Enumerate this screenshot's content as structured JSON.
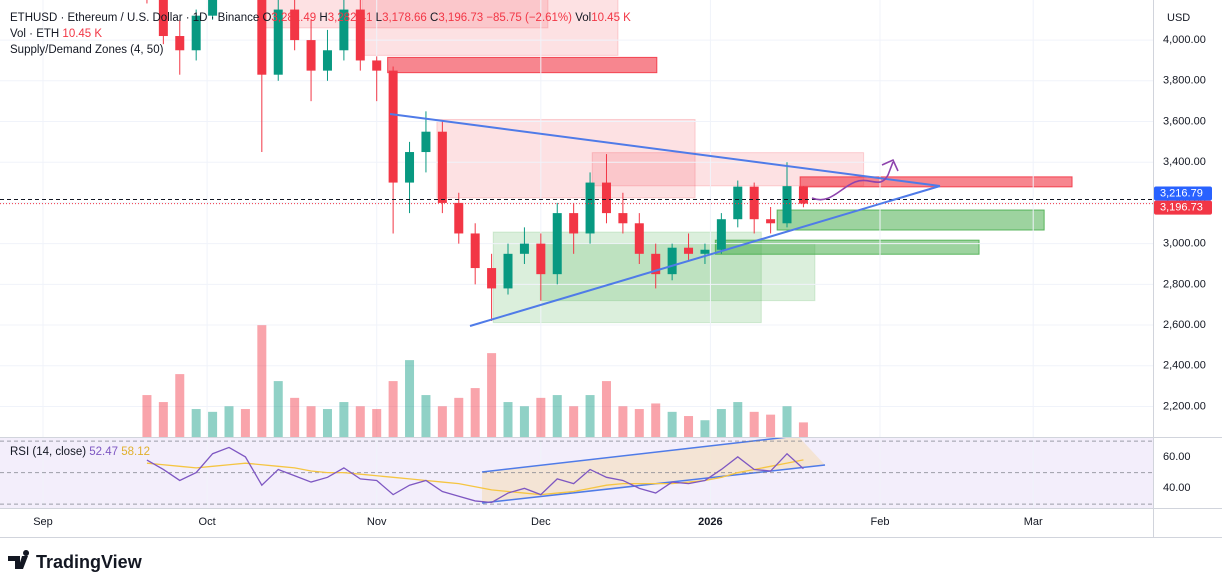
{
  "chart_data": {
    "type": "candlestick",
    "header": {
      "symbol": "ETHUSD · Ethereum / U.S. Dollar · 1D · Binance",
      "o": "O",
      "open": "3,281.49",
      "h": "H",
      "high": "3,282.41",
      "l": "L",
      "low": "3,178.66",
      "c": "C",
      "close": "3,196.73",
      "change": "−85.75 (−2.61%)",
      "vol": "Vol",
      "volume": "10.45 K"
    },
    "volume_legend": {
      "name": "Vol · ETH",
      "value": "10.45 K"
    },
    "indicator_legend": "Supply/Demand Zones (4, 50)",
    "currency": "USD",
    "x": [
      19,
      22,
      25,
      28,
      31,
      34,
      37,
      40,
      43,
      46,
      49,
      52,
      55,
      58,
      61,
      64,
      67,
      70,
      73,
      76,
      79,
      82,
      85,
      88,
      91,
      94,
      97,
      100,
      103,
      106,
      109,
      112,
      115,
      118,
      121,
      124,
      127,
      130,
      133,
      136,
      139
    ],
    "open": [
      4450,
      4200,
      4020,
      3950,
      4120,
      4350,
      4500,
      4450,
      3830,
      4150,
      4000,
      3850,
      3950,
      4150,
      3900,
      3850,
      3300,
      3450,
      3550,
      3200,
      3050,
      2880,
      2780,
      2950,
      3000,
      2850,
      3150,
      3050,
      3300,
      3150,
      3100,
      2950,
      2850,
      2980,
      2950,
      2970,
      3120,
      3280,
      3120,
      3100,
      3281.49
    ],
    "high": [
      4500,
      4260,
      4100,
      4150,
      4400,
      4550,
      4700,
      4480,
      4250,
      4300,
      4100,
      4050,
      4200,
      4250,
      3920,
      3870,
      3500,
      3650,
      3600,
      3250,
      3100,
      2950,
      3000,
      3080,
      3050,
      3200,
      3200,
      3350,
      3440,
      3250,
      3150,
      3000,
      3000,
      3050,
      3000,
      3150,
      3310,
      3300,
      3180,
      3400,
      3282.41
    ],
    "low": [
      4180,
      3980,
      3830,
      3900,
      4100,
      4300,
      4400,
      3450,
      3800,
      3950,
      3700,
      3800,
      3900,
      3850,
      3700,
      3050,
      3150,
      3350,
      3150,
      3000,
      2800,
      2620,
      2750,
      2900,
      2720,
      2800,
      2950,
      3000,
      3100,
      3050,
      2900,
      2780,
      2820,
      2920,
      2900,
      2950,
      3080,
      3050,
      3050,
      3080,
      3178.66
    ],
    "close": [
      4200,
      4020,
      3950,
      4120,
      4350,
      4500,
      4450,
      3830,
      4150,
      4000,
      3850,
      3950,
      4150,
      3900,
      3850,
      3300,
      3450,
      3550,
      3200,
      3050,
      2880,
      2780,
      2950,
      3000,
      2850,
      3150,
      3050,
      3300,
      3150,
      3100,
      2950,
      2850,
      2980,
      2950,
      2970,
      3120,
      3280,
      3120,
      3100,
      3282.48,
      3196.73
    ],
    "volume": [
      30,
      25,
      45,
      20,
      18,
      22,
      20,
      80,
      40,
      28,
      22,
      20,
      25,
      22,
      20,
      40,
      55,
      30,
      22,
      28,
      35,
      60,
      25,
      22,
      28,
      30,
      22,
      30,
      40,
      22,
      20,
      24,
      18,
      15,
      12,
      20,
      25,
      18,
      16,
      22,
      10.45
    ],
    "up_color": "#089981",
    "down_color": "#f23645",
    "xlim": [
      -7.86,
      202.9
    ],
    "xticks": [
      {
        "value": 0,
        "label": "Sep"
      },
      {
        "value": 30,
        "label": "Oct"
      },
      {
        "value": 61,
        "label": "Nov"
      },
      {
        "value": 91,
        "label": "Dec"
      },
      {
        "value": 122,
        "label": "2026",
        "bold": true
      },
      {
        "value": 153,
        "label": "Feb"
      },
      {
        "value": 181,
        "label": "Mar"
      }
    ],
    "ylim": [
      2050,
      4197
    ],
    "yticks": [
      {
        "value": 4000,
        "label": "4,000.00"
      },
      {
        "value": 3800,
        "label": "3,800.00"
      },
      {
        "value": 3600,
        "label": "3,600.00"
      },
      {
        "value": 3400,
        "label": "3,400.00"
      },
      {
        "value": 3200,
        "label": "3,200.00"
      },
      {
        "value": 3000,
        "label": "3,000.00"
      },
      {
        "value": 2800,
        "label": "2,800.00"
      },
      {
        "value": 2600,
        "label": "2,600.00"
      },
      {
        "value": 2400,
        "label": "2,400.00"
      },
      {
        "value": 2200,
        "label": "2,200.00"
      }
    ],
    "grid": true,
    "vlim": [
      0,
      93
    ],
    "price_lines": [
      {
        "value": 3216.79,
        "label": "3,216.79",
        "color": "#2962ff",
        "style": "dashed"
      },
      {
        "value": 3196.73,
        "label": "3,196.73",
        "color": "#f23645",
        "style": "dotted"
      }
    ],
    "zones": [
      {
        "x": [
          40,
          92.3
        ],
        "y": [
          4060,
          4200
        ],
        "color": "#f23645",
        "opacity": 0.15
      },
      {
        "x": [
          58.3,
          105.1
        ],
        "y": [
          3925,
          4200
        ],
        "color": "#f23645",
        "opacity": 0.15
      },
      {
        "x": [
          63,
          112.2
        ],
        "y": [
          3840,
          3915
        ],
        "color": "#f23645",
        "opacity": 0.6
      },
      {
        "x": [
          72,
          119.2
        ],
        "y": [
          3225,
          3610
        ],
        "color": "#f23645",
        "opacity": 0.15
      },
      {
        "x": [
          100.4,
          150
        ],
        "y": [
          3284,
          3447
        ],
        "color": "#f23645",
        "opacity": 0.15
      },
      {
        "x": [
          138.4,
          188.1
        ],
        "y": [
          3279,
          3328
        ],
        "color": "#f23645",
        "opacity": 0.6
      },
      {
        "x": [
          82.3,
          131.3
        ],
        "y": [
          2612,
          3057
        ],
        "color": "#4caf50",
        "opacity": 0.2
      },
      {
        "x": [
          90.9,
          141.1
        ],
        "y": [
          2720,
          3000
        ],
        "color": "#4caf50",
        "opacity": 0.2
      },
      {
        "x": [
          122.9,
          171.1
        ],
        "y": [
          2948,
          3017
        ],
        "color": "#4caf50",
        "opacity": 0.55
      },
      {
        "x": [
          134.2,
          183
        ],
        "y": [
          3067,
          3165
        ],
        "color": "#4caf50",
        "opacity": 0.55
      }
    ],
    "rsi": {
      "name": "RSI (14, close)",
      "value_label": "52.47",
      "ma_label": "58.12",
      "values": [
        58,
        52,
        45,
        50,
        62,
        66,
        60,
        42,
        52,
        48,
        44,
        47,
        53,
        46,
        45,
        36,
        42,
        45,
        38,
        35,
        32,
        31,
        37,
        40,
        36,
        46,
        43,
        52,
        47,
        45,
        40,
        37,
        44,
        43,
        45,
        52,
        60,
        52,
        51,
        62,
        52.47
      ],
      "ma": [
        56,
        55,
        54,
        53,
        54,
        55,
        56,
        55,
        54,
        53,
        51,
        50,
        50,
        49,
        48,
        47,
        46,
        45,
        44,
        43,
        41,
        39,
        38,
        37,
        36,
        37,
        38,
        40,
        42,
        43,
        43,
        43,
        43,
        44,
        45,
        47,
        50,
        52,
        54,
        56,
        58.12
      ],
      "color": "#7e57c2",
      "ma_color": "#f5c542",
      "ylim": [
        27.5,
        72
      ],
      "yticks": [
        {
          "value": 60,
          "label": "60.00"
        },
        {
          "value": 40,
          "label": "40.00"
        }
      ],
      "levels": [
        70,
        50,
        30
      ]
    },
    "brand": "TradingView"
  }
}
